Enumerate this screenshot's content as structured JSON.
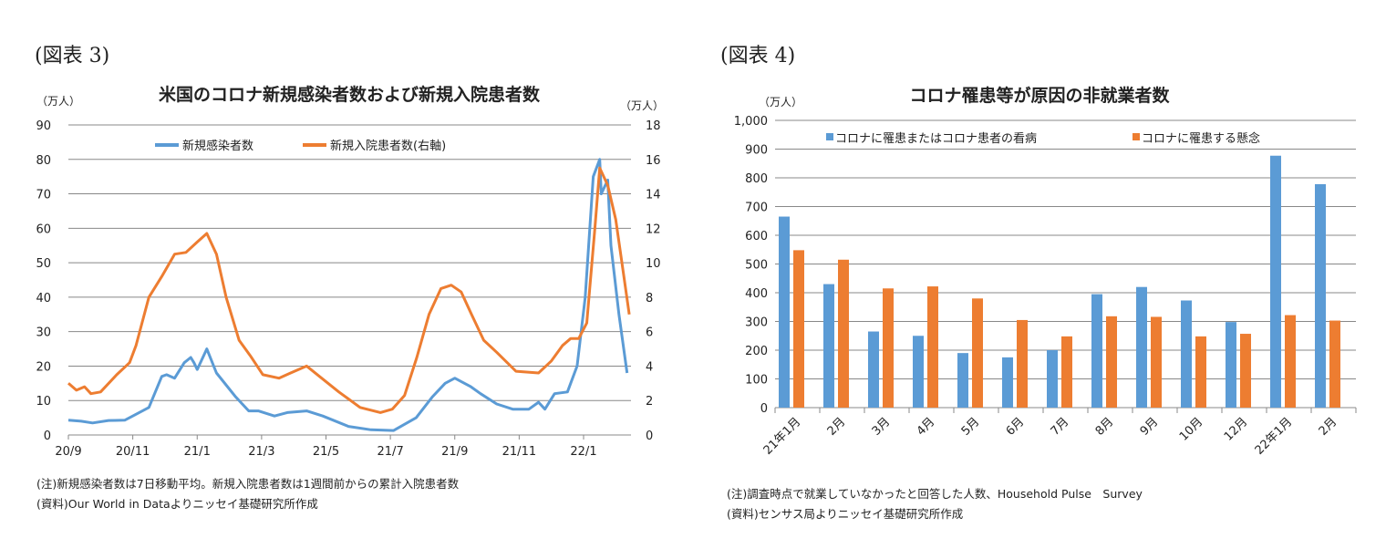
{
  "chart_data": [
    {
      "type": "line",
      "figure_label": "(図表 3)",
      "title": "米国のコロナ新規感染者数および新規入院患者数",
      "ylabel_left": "（万人）",
      "ylabel_right": "（万人）",
      "ylim_left": [
        0,
        90
      ],
      "ylim_right": [
        0,
        18
      ],
      "yticks_left": [
        "0",
        "10",
        "20",
        "30",
        "40",
        "50",
        "60",
        "70",
        "80",
        "90"
      ],
      "yticks_right": [
        "0",
        "2",
        "4",
        "6",
        "8",
        "10",
        "12",
        "14",
        "16",
        "18"
      ],
      "xticks": [
        "20/9",
        "20/11",
        "21/1",
        "21/3",
        "21/5",
        "21/7",
        "21/9",
        "21/11",
        "22/1"
      ],
      "x_unit": "months since 2020/9",
      "grid": true,
      "legend_position": "top-center",
      "series": [
        {
          "name": "新規感染者数",
          "axis": "left",
          "color": "#5b9bd5",
          "x": [
            0,
            0.4,
            0.75,
            1.25,
            1.75,
            2,
            2.5,
            2.9,
            3.05,
            3.3,
            3.6,
            3.8,
            3.9,
            4,
            4.3,
            4.6,
            5.2,
            5.6,
            5.9,
            6.4,
            6.8,
            7.4,
            7.9,
            8.7,
            9.4,
            10.1,
            10.8,
            11.3,
            11.7,
            12,
            12.3,
            12.5,
            12.8,
            13.3,
            13.8,
            14.3,
            14.6,
            14.8,
            15.1,
            15.5,
            15.8,
            16.05,
            16.3,
            16.5,
            16.55,
            16.75,
            16.85,
            17.1,
            17.35
          ],
          "y": [
            4.3,
            4,
            3.5,
            4.2,
            4.3,
            5.5,
            8,
            17,
            17.5,
            16.5,
            21,
            22.5,
            21,
            19,
            25,
            18,
            11,
            7,
            7,
            5.5,
            6.5,
            7,
            5.5,
            2.5,
            1.5,
            1.3,
            5,
            11,
            15,
            16.5,
            15,
            14,
            12,
            9,
            7.5,
            7.5,
            9.5,
            7.5,
            12,
            12.5,
            20,
            40,
            75,
            80,
            70,
            74,
            55,
            35,
            18
          ]
        },
        {
          "name": "新規入院患者数(右軸)",
          "axis": "right",
          "color": "#ed7d31",
          "x": [
            0,
            0.25,
            0.5,
            0.7,
            1,
            1.5,
            1.9,
            2.1,
            2.5,
            2.9,
            3.3,
            3.65,
            4,
            4.3,
            4.6,
            4.9,
            5.3,
            5.65,
            6.04,
            6.54,
            6.9,
            7.4,
            7.8,
            8.4,
            9.06,
            9.69,
            10.06,
            10.44,
            10.82,
            11.2,
            11.57,
            11.89,
            12.2,
            12.52,
            12.9,
            13.3,
            13.9,
            14.6,
            15.0,
            15.35,
            15.6,
            15.85,
            16.1,
            16.35,
            16.5,
            16.75,
            17.0,
            17.23,
            17.42
          ],
          "y": [
            3.0,
            2.6,
            2.8,
            2.4,
            2.5,
            3.5,
            4.2,
            5.2,
            8,
            9.2,
            10.5,
            10.6,
            11.2,
            11.7,
            10.5,
            8,
            5.5,
            4.6,
            3.5,
            3.3,
            3.6,
            4,
            3.4,
            2.5,
            1.6,
            1.3,
            1.5,
            2.3,
            4.5,
            7,
            8.5,
            8.7,
            8.3,
            7,
            5.5,
            4.8,
            3.7,
            3.6,
            4.3,
            5.2,
            5.6,
            5.6,
            6.5,
            12,
            15.5,
            14.5,
            12.5,
            9.5,
            7
          ]
        }
      ],
      "notes": [
        "(注)新規感染者数は7日移動平均。新規入院患者数は1週間前からの累計入院患者数",
        "(資料)Our World in Dataよりニッセイ基礎研究所作成"
      ]
    },
    {
      "type": "bar",
      "figure_label": "(図表 4)",
      "title": "コロナ罹患等が原因の非就業者数",
      "ylabel": "（万人）",
      "ylim": [
        0,
        1000
      ],
      "yticks": [
        "0",
        "100",
        "200",
        "300",
        "400",
        "500",
        "600",
        "700",
        "800",
        "900",
        "1,000"
      ],
      "grid": true,
      "legend_position": "top",
      "categories": [
        "21年1月",
        "2月",
        "3月",
        "4月",
        "5月",
        "6月",
        "7月",
        "8月",
        "9月",
        "10月",
        "12月",
        "22年1月",
        "2月"
      ],
      "series": [
        {
          "name": "コロナに罹患またはコロナ患者の看病",
          "color": "#5b9bd5",
          "values": [
            665,
            430,
            265,
            250,
            190,
            175,
            200,
            395,
            420,
            373,
            298,
            877,
            778
          ]
        },
        {
          "name": "コロナに罹患する懸念",
          "color": "#ed7d31",
          "values": [
            548,
            515,
            415,
            422,
            380,
            305,
            248,
            318,
            316,
            248,
            257,
            322,
            303
          ]
        }
      ],
      "notes": [
        "(注)調査時点で就業していなかったと回答した人数、Household Pulse　Survey",
        "(資料)センサス局よりニッセイ基礎研究所作成"
      ]
    }
  ]
}
